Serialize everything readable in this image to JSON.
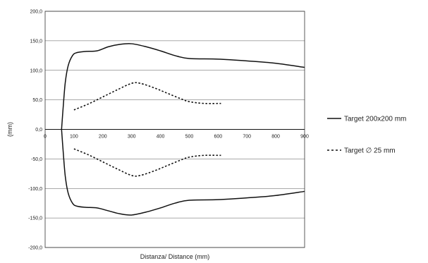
{
  "chart_data": {
    "type": "line",
    "xlabel": "Distanza/ Distance  (mm)",
    "ylabel": "(mm)",
    "xlim": [
      0,
      900
    ],
    "ylim": [
      -200,
      200
    ],
    "x_ticks": [
      0,
      100,
      200,
      300,
      400,
      500,
      600,
      700,
      800,
      900
    ],
    "x_tick_labels": [
      "0",
      "100",
      "200",
      "300",
      "400",
      "500",
      "600",
      "700",
      "800",
      "900"
    ],
    "y_ticks": [
      200,
      150,
      100,
      50,
      0,
      -50,
      -100,
      -150,
      -200
    ],
    "y_tick_labels": [
      "200,0",
      "150,0",
      "100,0",
      "50,0",
      "0,0",
      "-50,0",
      "-100,0",
      "-150,0",
      "-200,0"
    ],
    "grid": "horizontal",
    "legend_position": "right",
    "series": [
      {
        "name": "Target 200x200 mm",
        "style": "solid",
        "color": "#111111",
        "upper": [
          [
            57,
            0
          ],
          [
            63,
            40
          ],
          [
            70,
            80
          ],
          [
            80,
            108
          ],
          [
            95,
            125
          ],
          [
            110,
            130
          ],
          [
            140,
            132
          ],
          [
            180,
            133
          ],
          [
            220,
            140
          ],
          [
            260,
            144
          ],
          [
            300,
            145
          ],
          [
            350,
            140
          ],
          [
            400,
            133
          ],
          [
            450,
            125
          ],
          [
            500,
            120
          ],
          [
            600,
            119
          ],
          [
            700,
            116
          ],
          [
            800,
            112
          ],
          [
            900,
            105
          ]
        ],
        "lower": [
          [
            57,
            0
          ],
          [
            63,
            -40
          ],
          [
            70,
            -80
          ],
          [
            80,
            -108
          ],
          [
            95,
            -125
          ],
          [
            110,
            -130
          ],
          [
            140,
            -132
          ],
          [
            180,
            -133
          ],
          [
            220,
            -138
          ],
          [
            260,
            -143
          ],
          [
            300,
            -145
          ],
          [
            350,
            -140
          ],
          [
            400,
            -133
          ],
          [
            450,
            -125
          ],
          [
            500,
            -120
          ],
          [
            600,
            -119
          ],
          [
            700,
            -116
          ],
          [
            800,
            -112
          ],
          [
            900,
            -105
          ]
        ]
      },
      {
        "name": "Target ∅ 25 mm",
        "style": "dashed",
        "color": "#111111",
        "upper": [
          [
            100,
            33
          ],
          [
            150,
            43
          ],
          [
            200,
            55
          ],
          [
            250,
            67
          ],
          [
            300,
            78
          ],
          [
            330,
            78
          ],
          [
            380,
            70
          ],
          [
            420,
            62
          ],
          [
            470,
            52
          ],
          [
            500,
            47
          ],
          [
            550,
            44
          ],
          [
            610,
            44
          ]
        ],
        "lower": [
          [
            100,
            -33
          ],
          [
            150,
            -43
          ],
          [
            200,
            -55
          ],
          [
            250,
            -67
          ],
          [
            300,
            -78
          ],
          [
            330,
            -78
          ],
          [
            380,
            -70
          ],
          [
            420,
            -62
          ],
          [
            470,
            -52
          ],
          [
            500,
            -47
          ],
          [
            550,
            -44
          ],
          [
            610,
            -44
          ]
        ]
      }
    ]
  }
}
